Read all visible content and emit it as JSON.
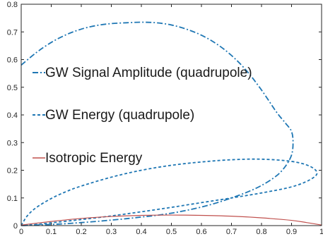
{
  "chart_data": {
    "type": "line",
    "title": "",
    "xlabel": "",
    "ylabel": "",
    "xlim": [
      0,
      1
    ],
    "ylim": [
      0,
      0.8
    ],
    "x_ticks": [
      "0",
      "0.1",
      "0.2",
      "0.3",
      "0.4",
      "0.5",
      "0.6",
      "0.7",
      "0.8",
      "0.9",
      "1"
    ],
    "y_ticks": [
      "0",
      "0.1",
      "0.2",
      "0.3",
      "0.4",
      "0.5",
      "0.6",
      "0.7",
      "0.8"
    ],
    "grid": false,
    "legend_placement": "left, inside plot",
    "series": [
      {
        "name": "GW Signal Amplitude (quadrupole)",
        "color": "#1f77b4",
        "line_style": "dash-dot",
        "x": [
          0.0,
          0.05,
          0.1,
          0.15,
          0.2,
          0.25,
          0.3,
          0.35,
          0.4,
          0.45,
          0.5,
          0.55,
          0.6,
          0.65,
          0.7,
          0.75,
          0.8,
          0.85,
          0.88,
          0.9,
          0.905,
          0.9,
          0.88,
          0.85,
          0.8,
          0.75,
          0.7,
          0.65,
          0.6,
          0.55,
          0.5,
          0.45,
          0.4,
          0.35,
          0.3,
          0.25,
          0.2,
          0.15,
          0.1,
          0.05,
          0.0
        ],
        "y": [
          0.58,
          0.625,
          0.662,
          0.69,
          0.71,
          0.723,
          0.73,
          0.733,
          0.735,
          0.733,
          0.725,
          0.71,
          0.688,
          0.657,
          0.615,
          0.56,
          0.49,
          0.41,
          0.37,
          0.34,
          0.3,
          0.255,
          0.215,
          0.18,
          0.145,
          0.12,
          0.1,
          0.082,
          0.067,
          0.055,
          0.045,
          0.037,
          0.031,
          0.025,
          0.02,
          0.015,
          0.011,
          0.007,
          0.004,
          0.002,
          0.0
        ]
      },
      {
        "name": "GW Energy (quadrupole)",
        "color": "#1f77b4",
        "line_style": "dashed",
        "x": [
          0.0,
          0.02,
          0.05,
          0.1,
          0.15,
          0.2,
          0.3,
          0.4,
          0.5,
          0.6,
          0.7,
          0.8,
          0.9,
          0.96,
          0.985,
          0.96,
          0.9,
          0.8,
          0.7,
          0.6,
          0.5,
          0.4,
          0.3,
          0.2,
          0.1,
          0.05,
          0.0
        ],
        "y": [
          0.0,
          0.035,
          0.065,
          0.098,
          0.123,
          0.143,
          0.175,
          0.2,
          0.218,
          0.23,
          0.238,
          0.24,
          0.232,
          0.215,
          0.19,
          0.165,
          0.14,
          0.118,
          0.1,
          0.083,
          0.066,
          0.05,
          0.035,
          0.022,
          0.01,
          0.004,
          0.0
        ]
      },
      {
        "name": "Isotropic Energy",
        "color": "#c0504d",
        "line_style": "solid",
        "x": [
          0.0,
          0.1,
          0.2,
          0.3,
          0.4,
          0.5,
          0.6,
          0.7,
          0.8,
          0.9,
          0.95,
          1.0
        ],
        "y": [
          0.002,
          0.015,
          0.026,
          0.033,
          0.037,
          0.038,
          0.037,
          0.034,
          0.028,
          0.019,
          0.011,
          0.002
        ]
      }
    ]
  }
}
